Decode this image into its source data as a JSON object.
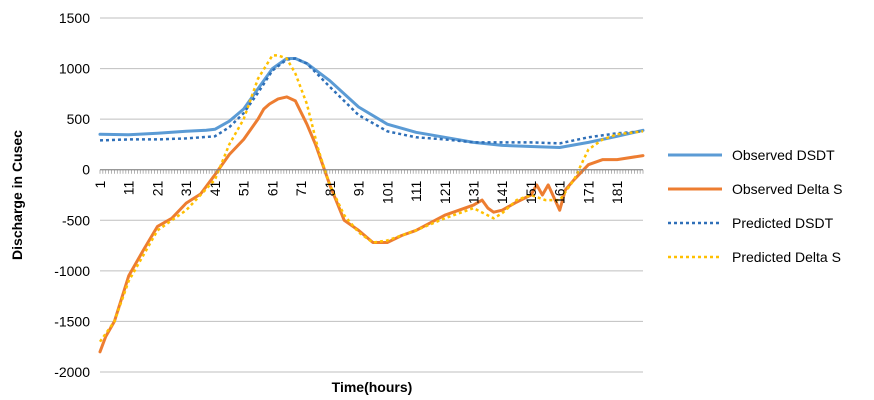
{
  "chart_data": {
    "type": "line",
    "title": "",
    "xlabel": "Time(hours)",
    "ylabel": "Discharge in Cusec",
    "xlim": [
      1,
      190
    ],
    "ylim": [
      -2000,
      1500
    ],
    "y_ticks": [
      -2000,
      -1500,
      -1000,
      -500,
      0,
      500,
      1000,
      1500
    ],
    "x_ticks": [
      1,
      11,
      21,
      31,
      41,
      51,
      61,
      71,
      81,
      91,
      101,
      111,
      121,
      131,
      141,
      151,
      161,
      171,
      181
    ],
    "grid": "horizontal",
    "legend_position": "right",
    "series": [
      {
        "name": "Observed DSDT",
        "color": "#5b9bd5",
        "style": "solid",
        "x": [
          1,
          11,
          21,
          31,
          38,
          41,
          46,
          51,
          56,
          61,
          66,
          69,
          73,
          81,
          91,
          101,
          111,
          121,
          131,
          141,
          151,
          161,
          171,
          181,
          190
        ],
        "y": [
          350,
          345,
          360,
          380,
          390,
          400,
          480,
          600,
          800,
          1000,
          1100,
          1100,
          1050,
          880,
          620,
          450,
          370,
          320,
          270,
          240,
          230,
          220,
          270,
          330,
          390
        ]
      },
      {
        "name": "Observed Delta S",
        "color": "#ed7d31",
        "style": "solid",
        "x": [
          1,
          3,
          6,
          11,
          16,
          21,
          26,
          31,
          36,
          41,
          46,
          51,
          56,
          58,
          60,
          63,
          66,
          69,
          73,
          76,
          81,
          86,
          91,
          96,
          101,
          106,
          111,
          121,
          131,
          134,
          136,
          138,
          141,
          146,
          151,
          153,
          155,
          157,
          161,
          163,
          166,
          171,
          176,
          181,
          190
        ],
        "y": [
          -1800,
          -1650,
          -1500,
          -1050,
          -800,
          -560,
          -480,
          -330,
          -240,
          -50,
          150,
          300,
          500,
          600,
          650,
          700,
          720,
          680,
          450,
          250,
          -150,
          -500,
          -600,
          -720,
          -720,
          -650,
          -600,
          -450,
          -350,
          -300,
          -380,
          -420,
          -400,
          -320,
          -250,
          -150,
          -250,
          -150,
          -400,
          -200,
          -100,
          50,
          100,
          100,
          140
        ]
      },
      {
        "name": "Predicted DSDT",
        "color": "#2e6fb8",
        "style": "dotted",
        "x": [
          1,
          11,
          21,
          31,
          41,
          46,
          51,
          56,
          61,
          66,
          69,
          73,
          81,
          91,
          101,
          111,
          121,
          131,
          141,
          151,
          161,
          171,
          181,
          190
        ],
        "y": [
          290,
          300,
          300,
          310,
          330,
          420,
          560,
          760,
          980,
          1090,
          1100,
          1050,
          820,
          540,
          380,
          320,
          300,
          270,
          270,
          270,
          260,
          320,
          360,
          380
        ]
      },
      {
        "name": "Predicted Delta S",
        "color": "#ffc000",
        "style": "dotted",
        "x": [
          1,
          6,
          11,
          21,
          31,
          41,
          46,
          51,
          56,
          61,
          63,
          66,
          69,
          73,
          77,
          81,
          86,
          91,
          96,
          101,
          111,
          121,
          131,
          138,
          141,
          146,
          151,
          156,
          161,
          166,
          171,
          176,
          181,
          190
        ],
        "y": [
          -1700,
          -1500,
          -1100,
          -600,
          -400,
          -100,
          250,
          500,
          900,
          1130,
          1130,
          1100,
          950,
          650,
          200,
          -150,
          -450,
          -620,
          -720,
          -700,
          -600,
          -480,
          -380,
          -480,
          -430,
          -300,
          -250,
          -300,
          -300,
          -100,
          200,
          300,
          350,
          380
        ]
      }
    ]
  }
}
